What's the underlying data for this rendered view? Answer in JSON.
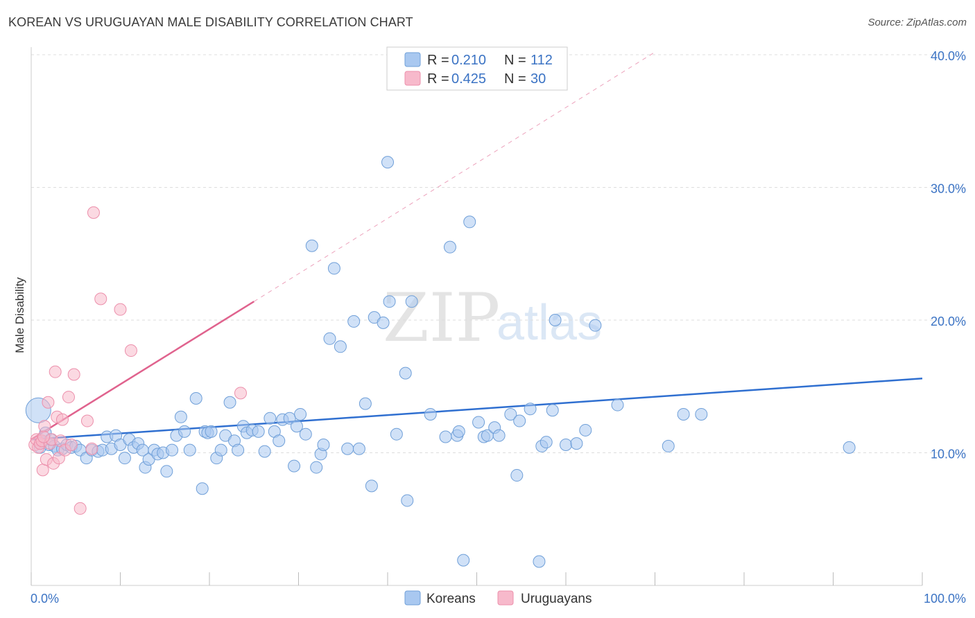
{
  "title": "KOREAN VS URUGUAYAN MALE DISABILITY CORRELATION CHART",
  "source": "Source: ZipAtlas.com",
  "watermark": {
    "zip": "ZIP",
    "atlas": "atlas"
  },
  "colors": {
    "korean_fill": "#a9c8f0",
    "korean_stroke": "#6f9fd8",
    "korean_line": "#2f6fd0",
    "uruguayan_fill": "#f7b9cb",
    "uruguayan_stroke": "#ec8fab",
    "uruguayan_line": "#e0638e",
    "grid": "#dddddd",
    "tick_text": "#3b73c4"
  },
  "legend": {
    "rows": [
      {
        "r_label": "R =",
        "r_value": "0.210",
        "n_label": "N =",
        "n_value": "112"
      },
      {
        "r_label": "R =",
        "r_value": "0.425",
        "n_label": "N =",
        "n_value": "30"
      }
    ]
  },
  "bottom_legend": {
    "koreans": "Koreans",
    "uruguayans": "Uruguayans"
  },
  "chart_data": {
    "type": "scatter",
    "title": "KOREAN VS URUGUAYAN MALE DISABILITY CORRELATION CHART",
    "xlabel": "",
    "ylabel": "Male Disability",
    "xlim": [
      0,
      100
    ],
    "ylim": [
      0,
      40
    ],
    "x_tick_labels": [
      "0.0%",
      "100.0%"
    ],
    "y_ticks": [
      10,
      20,
      30,
      40
    ],
    "y_tick_labels": [
      "10.0%",
      "20.0%",
      "30.0%",
      "40.0%"
    ],
    "grid": true,
    "legend_position": "top-center",
    "series": [
      {
        "name": "Koreans",
        "r": 0.21,
        "n": 112,
        "trend": {
          "x0": 0,
          "y0": 11.0,
          "x1": 100,
          "y1": 15.6
        },
        "points": [
          [
            0.8,
            13.2
          ],
          [
            1.2,
            10.8
          ],
          [
            1.6,
            11.5
          ],
          [
            2.0,
            10.6
          ],
          [
            2.2,
            11.0
          ],
          [
            2.6,
            10.5
          ],
          [
            3.0,
            10.2
          ],
          [
            3.5,
            10.3
          ],
          [
            4.0,
            10.6
          ],
          [
            4.5,
            10.4
          ],
          [
            5.0,
            10.5
          ],
          [
            5.5,
            10.2
          ],
          [
            6.2,
            9.6
          ],
          [
            6.8,
            10.2
          ],
          [
            7.5,
            10.1
          ],
          [
            8.0,
            10.2
          ],
          [
            8.5,
            11.2
          ],
          [
            9.0,
            10.3
          ],
          [
            9.5,
            11.3
          ],
          [
            10.0,
            10.6
          ],
          [
            10.5,
            9.6
          ],
          [
            11.0,
            11.0
          ],
          [
            11.5,
            10.4
          ],
          [
            12.0,
            10.7
          ],
          [
            12.5,
            10.2
          ],
          [
            12.8,
            8.9
          ],
          [
            13.2,
            9.5
          ],
          [
            13.8,
            10.2
          ],
          [
            14.2,
            9.9
          ],
          [
            14.8,
            10.0
          ],
          [
            15.2,
            8.6
          ],
          [
            15.8,
            10.2
          ],
          [
            16.3,
            11.3
          ],
          [
            16.8,
            12.7
          ],
          [
            17.2,
            11.6
          ],
          [
            17.8,
            10.2
          ],
          [
            18.5,
            14.1
          ],
          [
            19.2,
            7.3
          ],
          [
            19.5,
            11.6
          ],
          [
            19.8,
            11.5
          ],
          [
            20.2,
            11.6
          ],
          [
            20.8,
            9.6
          ],
          [
            21.3,
            10.2
          ],
          [
            21.8,
            11.3
          ],
          [
            22.3,
            13.8
          ],
          [
            22.8,
            10.9
          ],
          [
            23.2,
            10.2
          ],
          [
            23.8,
            12.0
          ],
          [
            24.2,
            11.5
          ],
          [
            24.8,
            11.7
          ],
          [
            25.5,
            11.6
          ],
          [
            26.2,
            10.1
          ],
          [
            26.8,
            12.6
          ],
          [
            27.3,
            11.6
          ],
          [
            27.8,
            10.9
          ],
          [
            28.2,
            12.5
          ],
          [
            29.0,
            12.6
          ],
          [
            29.5,
            9.0
          ],
          [
            29.8,
            12.0
          ],
          [
            30.2,
            12.9
          ],
          [
            30.8,
            11.4
          ],
          [
            31.5,
            25.6
          ],
          [
            32.0,
            8.9
          ],
          [
            32.5,
            9.9
          ],
          [
            32.8,
            10.6
          ],
          [
            33.5,
            18.6
          ],
          [
            34.0,
            23.9
          ],
          [
            34.7,
            18.0
          ],
          [
            35.5,
            10.3
          ],
          [
            36.2,
            19.9
          ],
          [
            36.8,
            10.3
          ],
          [
            37.5,
            13.7
          ],
          [
            38.2,
            7.5
          ],
          [
            38.5,
            20.2
          ],
          [
            39.5,
            19.8
          ],
          [
            40.0,
            31.9
          ],
          [
            40.2,
            21.4
          ],
          [
            41.0,
            11.4
          ],
          [
            42.2,
            6.4
          ],
          [
            42.0,
            16.0
          ],
          [
            42.7,
            21.4
          ],
          [
            44.8,
            12.9
          ],
          [
            46.5,
            11.2
          ],
          [
            47.0,
            25.5
          ],
          [
            47.8,
            11.3
          ],
          [
            48.0,
            11.6
          ],
          [
            48.5,
            1.9
          ],
          [
            49.2,
            27.4
          ],
          [
            50.2,
            12.3
          ],
          [
            50.8,
            11.2
          ],
          [
            51.2,
            11.3
          ],
          [
            52.0,
            11.9
          ],
          [
            52.5,
            11.3
          ],
          [
            53.8,
            12.9
          ],
          [
            54.5,
            8.3
          ],
          [
            54.8,
            12.4
          ],
          [
            56.0,
            13.3
          ],
          [
            57.0,
            1.8
          ],
          [
            57.3,
            10.5
          ],
          [
            57.8,
            10.8
          ],
          [
            58.5,
            13.2
          ],
          [
            58.8,
            20.0
          ],
          [
            60.0,
            10.6
          ],
          [
            61.2,
            10.7
          ],
          [
            62.2,
            11.7
          ],
          [
            63.3,
            19.6
          ],
          [
            65.8,
            13.6
          ],
          [
            71.5,
            10.5
          ],
          [
            73.2,
            12.9
          ],
          [
            75.2,
            12.9
          ],
          [
            91.8,
            10.4
          ],
          [
            1.0,
            10.4
          ]
        ]
      },
      {
        "name": "Uruguayans",
        "r": 0.425,
        "n": 30,
        "trend": {
          "x0": 0,
          "y0": 11.0,
          "x1": 25,
          "y1": 21.4,
          "extend_to_x": 70,
          "extend_to_y": 40.2
        },
        "points": [
          [
            0.4,
            10.6
          ],
          [
            0.6,
            11.0
          ],
          [
            0.8,
            10.4
          ],
          [
            1.0,
            10.7
          ],
          [
            1.2,
            10.9
          ],
          [
            1.3,
            8.7
          ],
          [
            1.5,
            12.0
          ],
          [
            1.7,
            9.5
          ],
          [
            1.9,
            13.8
          ],
          [
            2.1,
            10.7
          ],
          [
            2.3,
            11.0
          ],
          [
            2.5,
            9.2
          ],
          [
            2.7,
            16.1
          ],
          [
            2.9,
            12.7
          ],
          [
            3.1,
            9.6
          ],
          [
            3.3,
            10.9
          ],
          [
            3.5,
            12.5
          ],
          [
            3.8,
            10.2
          ],
          [
            4.2,
            14.2
          ],
          [
            4.5,
            10.6
          ],
          [
            4.8,
            15.9
          ],
          [
            5.5,
            5.8
          ],
          [
            6.3,
            12.4
          ],
          [
            6.8,
            10.3
          ],
          [
            7.0,
            28.1
          ],
          [
            7.8,
            21.6
          ],
          [
            10.0,
            20.8
          ],
          [
            11.2,
            17.7
          ],
          [
            23.5,
            14.5
          ],
          [
            1.4,
            11.2
          ]
        ]
      }
    ]
  }
}
